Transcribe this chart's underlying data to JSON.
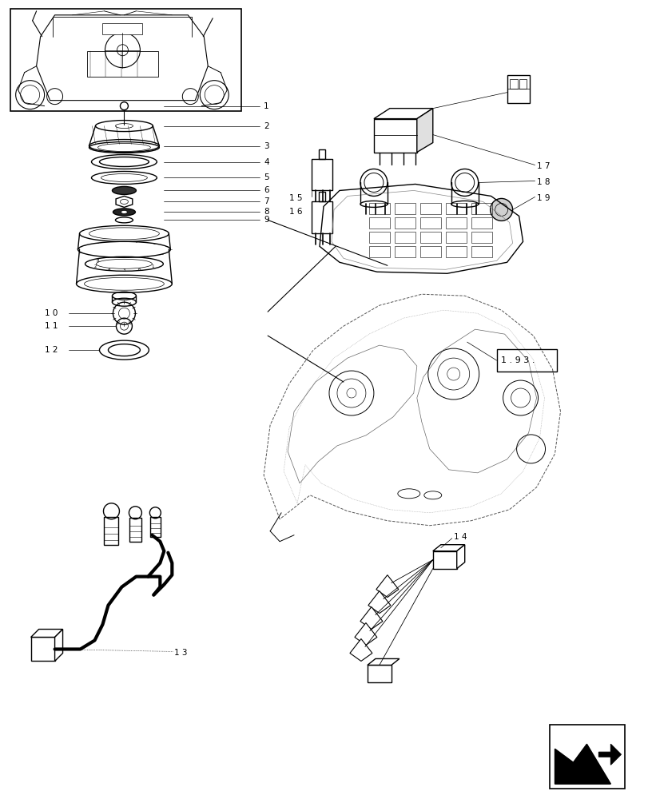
{
  "bg_color": "#ffffff",
  "lc": "#000000",
  "fig_width": 8.12,
  "fig_height": 10.0,
  "dpi": 100,
  "ref_label": "1 . 9 3 .",
  "xlim": [
    0,
    8.12
  ],
  "ylim": [
    0,
    10.0
  ]
}
